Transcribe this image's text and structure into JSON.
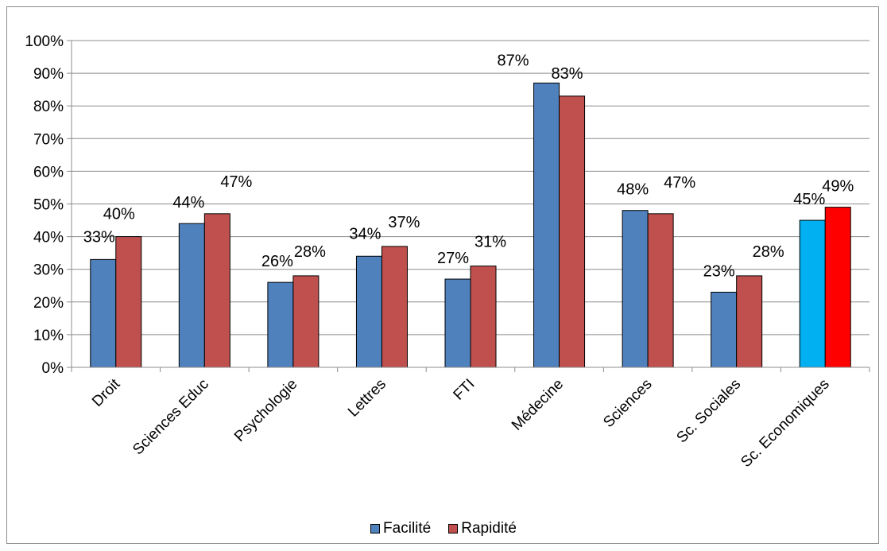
{
  "chart_data": {
    "type": "bar",
    "categories": [
      "Droit",
      "Sciences Educ",
      "Psychologie",
      "Lettres",
      "FTI",
      "Médecine",
      "Sciences",
      "Sc. Sociales",
      "Sc. Economiques"
    ],
    "series": [
      {
        "name": "Facilité",
        "color": "#4F81BD",
        "values": [
          33,
          44,
          26,
          34,
          27,
          87,
          48,
          23,
          45
        ],
        "labels": [
          "33%",
          "44%",
          "26%",
          "34%",
          "27%",
          "87%",
          "48%",
          "23%",
          "45%"
        ],
        "point_colors": [
          "#4F81BD",
          "#4F81BD",
          "#4F81BD",
          "#4F81BD",
          "#4F81BD",
          "#4F81BD",
          "#4F81BD",
          "#4F81BD",
          "#00B0F0"
        ]
      },
      {
        "name": "Rapidité",
        "color": "#C0504D",
        "values": [
          40,
          47,
          28,
          37,
          31,
          83,
          47,
          28,
          49
        ],
        "labels": [
          "40%",
          "47%",
          "28%",
          "37%",
          "31%",
          "83%",
          "47%",
          "28%",
          "49%"
        ],
        "point_colors": [
          "#C0504D",
          "#C0504D",
          "#C0504D",
          "#C0504D",
          "#C0504D",
          "#C0504D",
          "#C0504D",
          "#C0504D",
          "#FF0000"
        ]
      }
    ],
    "yticks": [
      "0%",
      "10%",
      "20%",
      "30%",
      "40%",
      "50%",
      "60%",
      "70%",
      "80%",
      "90%",
      "100%"
    ],
    "ylim": [
      0,
      100
    ],
    "grid": true,
    "legend": "bottom",
    "title": "",
    "xlabel": "",
    "ylabel": ""
  }
}
